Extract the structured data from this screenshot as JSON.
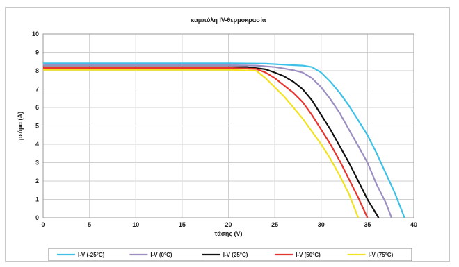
{
  "chart_data": {
    "type": "line",
    "title": "καμπύλη IV-θερμοκρασία",
    "xlabel": "τάσης (V)",
    "ylabel": "ρεύμα (A)",
    "xlim": [
      0,
      40
    ],
    "ylim": [
      0,
      10
    ],
    "x_ticks": [
      "0",
      "5",
      "10",
      "15",
      "20",
      "25",
      "30",
      "35",
      "40"
    ],
    "y_ticks": [
      "0",
      "1",
      "2",
      "3",
      "4",
      "5",
      "6",
      "7",
      "8",
      "9",
      "10"
    ],
    "grid": true,
    "legend_position": "bottom",
    "series": [
      {
        "name": "I-V (-25°C)",
        "color": "#3ec1e8",
        "points": [
          [
            0,
            8.4
          ],
          [
            5,
            8.4
          ],
          [
            10,
            8.4
          ],
          [
            15,
            8.4
          ],
          [
            20,
            8.4
          ],
          [
            24,
            8.38
          ],
          [
            26,
            8.33
          ],
          [
            27,
            8.3
          ],
          [
            28,
            8.28
          ],
          [
            29,
            8.2
          ],
          [
            30,
            7.9
          ],
          [
            31,
            7.4
          ],
          [
            32,
            6.8
          ],
          [
            33,
            6.1
          ],
          [
            34,
            5.3
          ],
          [
            35,
            4.5
          ],
          [
            36,
            3.5
          ],
          [
            37,
            2.4
          ],
          [
            38,
            1.3
          ],
          [
            39,
            0
          ]
        ]
      },
      {
        "name": "I-V (0°C)",
        "color": "#9d8ec2",
        "points": [
          [
            0,
            8.3
          ],
          [
            5,
            8.3
          ],
          [
            10,
            8.3
          ],
          [
            15,
            8.3
          ],
          [
            20,
            8.3
          ],
          [
            23,
            8.28
          ],
          [
            25,
            8.2
          ],
          [
            26,
            8.12
          ],
          [
            27,
            8.03
          ],
          [
            28,
            7.9
          ],
          [
            29,
            7.6
          ],
          [
            30,
            7.1
          ],
          [
            31,
            6.45
          ],
          [
            32,
            5.7
          ],
          [
            33,
            4.8
          ],
          [
            34,
            3.9
          ],
          [
            35,
            3.0
          ],
          [
            36,
            1.8
          ],
          [
            37,
            0.8
          ],
          [
            37.6,
            0
          ]
        ]
      },
      {
        "name": "I-V (25°C)",
        "color": "#111111",
        "points": [
          [
            0,
            8.2
          ],
          [
            5,
            8.2
          ],
          [
            10,
            8.2
          ],
          [
            15,
            8.2
          ],
          [
            20,
            8.2
          ],
          [
            22,
            8.2
          ],
          [
            24,
            8.08
          ],
          [
            25,
            7.9
          ],
          [
            26,
            7.7
          ],
          [
            27,
            7.4
          ],
          [
            28,
            7.0
          ],
          [
            29,
            6.4
          ],
          [
            30,
            5.6
          ],
          [
            31,
            4.8
          ],
          [
            32,
            3.9
          ],
          [
            33,
            3.0
          ],
          [
            34,
            2.0
          ],
          [
            35,
            1.0
          ],
          [
            36.2,
            0
          ]
        ]
      },
      {
        "name": "I-V (50°C)",
        "color": "#e8342c",
        "points": [
          [
            0,
            8.15
          ],
          [
            5,
            8.15
          ],
          [
            10,
            8.15
          ],
          [
            15,
            8.15
          ],
          [
            20,
            8.15
          ],
          [
            23,
            8.1
          ],
          [
            24,
            7.9
          ],
          [
            25,
            7.6
          ],
          [
            26,
            7.2
          ],
          [
            27,
            6.8
          ],
          [
            28,
            6.3
          ],
          [
            29,
            5.6
          ],
          [
            30,
            4.8
          ],
          [
            31,
            4.0
          ],
          [
            32,
            3.1
          ],
          [
            33,
            2.1
          ],
          [
            34,
            1.1
          ],
          [
            35,
            0
          ]
        ]
      },
      {
        "name": "I-V (75°C)",
        "color": "#f2e21f",
        "points": [
          [
            0,
            8.05
          ],
          [
            5,
            8.05
          ],
          [
            10,
            8.05
          ],
          [
            15,
            8.05
          ],
          [
            20,
            8.05
          ],
          [
            23,
            8.0
          ],
          [
            24,
            7.6
          ],
          [
            25,
            7.1
          ],
          [
            26,
            6.6
          ],
          [
            27,
            6.0
          ],
          [
            28,
            5.4
          ],
          [
            29,
            4.7
          ],
          [
            30,
            4.0
          ],
          [
            31,
            3.2
          ],
          [
            32,
            2.3
          ],
          [
            33,
            1.3
          ],
          [
            34,
            0
          ]
        ]
      }
    ]
  }
}
